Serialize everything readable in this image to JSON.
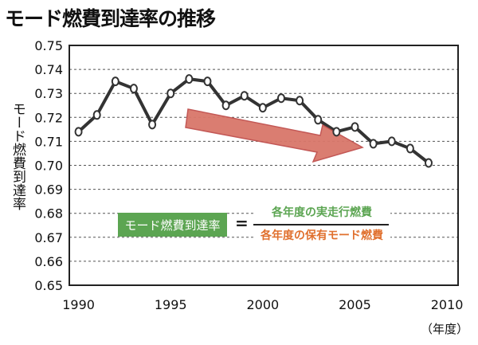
{
  "chart_data": {
    "type": "line",
    "title": "モード燃費到達率の推移",
    "ylabel": "モード燃費到達率",
    "xlabel": "（年度）",
    "ylim": [
      0.65,
      0.75
    ],
    "xlim": [
      1989.5,
      2010.6
    ],
    "yticks": [
      "0.65",
      "0.66",
      "0.67",
      "0.68",
      "0.69",
      "0.70",
      "0.71",
      "0.72",
      "0.73",
      "0.74",
      "0.75"
    ],
    "xticks": [
      "1990",
      "1995",
      "2000",
      "2005",
      "2010"
    ],
    "grid": "horizontal dotted",
    "x": [
      1990,
      1991,
      1992,
      1993,
      1994,
      1995,
      1996,
      1997,
      1998,
      1999,
      2000,
      2001,
      2002,
      2003,
      2004,
      2005,
      2006,
      2007,
      2008,
      2009
    ],
    "series": [
      {
        "name": "モード燃費到達率",
        "values": [
          0.714,
          0.721,
          0.735,
          0.732,
          0.717,
          0.73,
          0.736,
          0.735,
          0.725,
          0.729,
          0.724,
          0.728,
          0.727,
          0.719,
          0.714,
          0.716,
          0.709,
          0.71,
          0.707,
          0.701
        ]
      }
    ],
    "annotations": {
      "trend_arrow": "decreasing",
      "formula_label": "モード燃費到達率",
      "equals": "=",
      "numerator": "各年度の実走行燃費",
      "denominator": "各年度の保有モード燃費"
    }
  },
  "colors": {
    "line": "#333333",
    "arrow": "#d9776a",
    "arrow_border": "#c0504d",
    "green": "#5ca552",
    "orange": "#e0702e"
  }
}
